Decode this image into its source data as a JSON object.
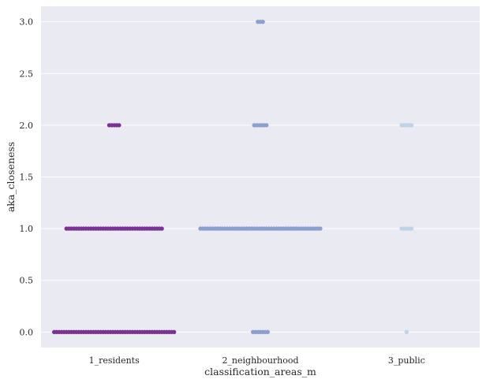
{
  "chart_data": {
    "type": "scatter",
    "subtype": "swarm",
    "xlabel": "classification_areas_m",
    "ylabel": "aka_closeness",
    "categories": [
      "1_residents",
      "2_neighbourhood",
      "3_public"
    ],
    "colors": [
      "#7b3294",
      "#8c9fce",
      "#bfd3e6"
    ],
    "ylim": [
      -0.15,
      3.15
    ],
    "yticks": [
      0.0,
      0.5,
      1.0,
      1.5,
      2.0,
      2.5,
      3.0
    ],
    "ytick_labels": [
      "0.0",
      "0.5",
      "1.0",
      "1.5",
      "2.0",
      "2.5",
      "3.0"
    ],
    "grid": true,
    "background": "#eaeaf2",
    "series": [
      {
        "category": "1_residents",
        "points": [
          {
            "y": 0.0,
            "count": 50
          },
          {
            "y": 1.0,
            "count": 40
          },
          {
            "y": 2.0,
            "count": 5
          }
        ]
      },
      {
        "category": "2_neighbourhood",
        "points": [
          {
            "y": 0.0,
            "count": 7
          },
          {
            "y": 1.0,
            "count": 50
          },
          {
            "y": 2.0,
            "count": 6
          },
          {
            "y": 3.0,
            "count": 3
          }
        ]
      },
      {
        "category": "3_public",
        "points": [
          {
            "y": 0.0,
            "count": 1
          },
          {
            "y": 1.0,
            "count": 5
          },
          {
            "y": 2.0,
            "count": 5
          }
        ]
      }
    ]
  }
}
